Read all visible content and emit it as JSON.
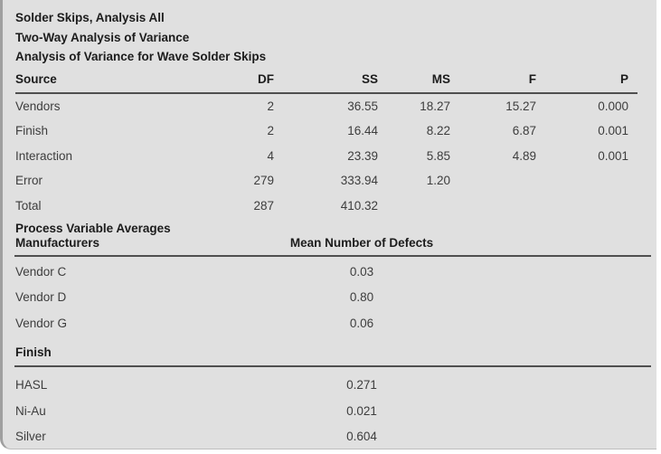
{
  "titles": [
    "Solder Skips, Analysis All",
    "Two-Way Analysis of Variance",
    "Analysis of Variance for Wave Solder Skips"
  ],
  "anova": {
    "columns": [
      "Source",
      "DF",
      "SS",
      "MS",
      "F",
      "P"
    ],
    "rows": [
      {
        "label": "Vendors",
        "df": "2",
        "ss": "36.55",
        "ms": "18.27",
        "f": "15.27",
        "p": "0.000"
      },
      {
        "label": "Finish",
        "df": "2",
        "ss": "16.44",
        "ms": "8.22",
        "f": "6.87",
        "p": "0.001"
      },
      {
        "label": "Interaction",
        "df": "4",
        "ss": "23.39",
        "ms": "5.85",
        "f": "4.89",
        "p": "0.001"
      },
      {
        "label": "Error",
        "df": "279",
        "ss": "333.94",
        "ms": "1.20",
        "f": "",
        "p": ""
      },
      {
        "label": "Total",
        "df": "287",
        "ss": "410.32",
        "ms": "",
        "f": "",
        "p": ""
      }
    ]
  },
  "averages": {
    "section_title": "Process Variable Averages",
    "group1_header": "Manufacturers",
    "value_header": "Mean Number of Defects",
    "manufacturers": [
      {
        "label": "Vendor C",
        "value": "0.03"
      },
      {
        "label": "Vendor D",
        "value": "0.80"
      },
      {
        "label": "Vendor G",
        "value": "0.06"
      }
    ],
    "group2_header": "Finish",
    "finishes": [
      {
        "label": "HASL",
        "value": "0.271"
      },
      {
        "label": "Ni-Au",
        "value": "0.021"
      },
      {
        "label": "Silver",
        "value": "0.604"
      }
    ]
  },
  "colors": {
    "panel_bg": "#e0e0e0",
    "panel_edge": "#9f9f9f",
    "rule": "#4f4f4f",
    "heading_text": "#1c1c1c",
    "body_text": "#3d3d3d"
  }
}
